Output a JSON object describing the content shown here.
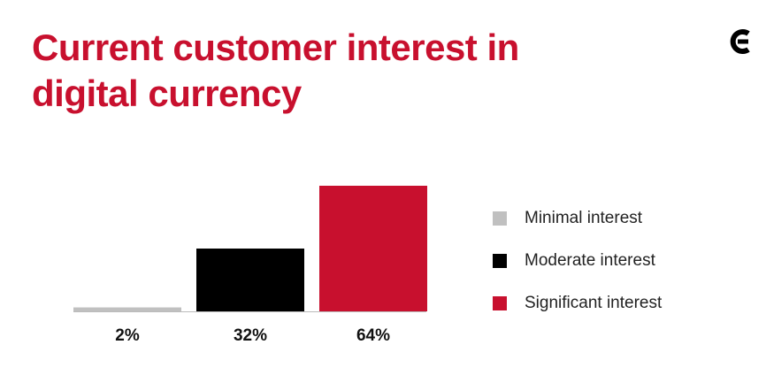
{
  "chart_data": {
    "type": "bar",
    "title": "Current customer interest in digital currency",
    "categories": [
      "Minimal interest",
      "Moderate interest",
      "Significant interest"
    ],
    "values": [
      2,
      32,
      64
    ],
    "value_labels": [
      "2%",
      "32%",
      "64%"
    ],
    "colors": [
      "#c0c0c0",
      "#000000",
      "#c8102e"
    ]
  }
}
